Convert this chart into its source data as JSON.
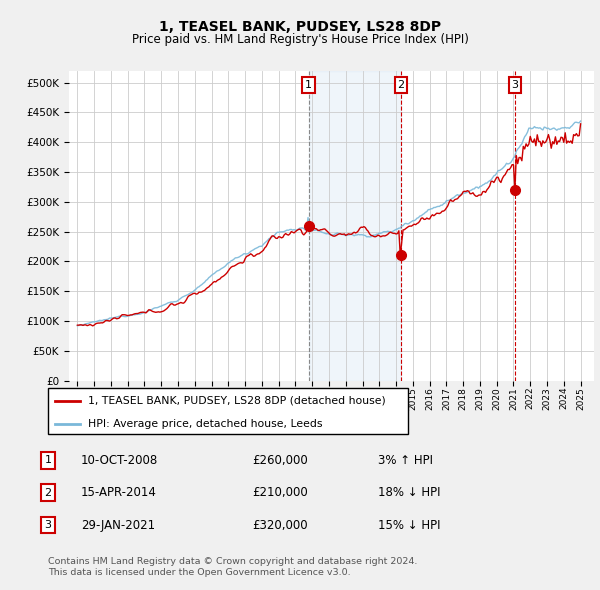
{
  "title": "1, TEASEL BANK, PUDSEY, LS28 8DP",
  "subtitle": "Price paid vs. HM Land Registry's House Price Index (HPI)",
  "legend_line1": "1, TEASEL BANK, PUDSEY, LS28 8DP (detached house)",
  "legend_line2": "HPI: Average price, detached house, Leeds",
  "footnote1": "Contains HM Land Registry data © Crown copyright and database right 2024.",
  "footnote2": "This data is licensed under the Open Government Licence v3.0.",
  "transactions": [
    {
      "num": 1,
      "date": "10-OCT-2008",
      "price": 260000,
      "hpi_rel": "3% ↑ HPI",
      "x": 2008.78
    },
    {
      "num": 2,
      "date": "15-APR-2014",
      "price": 210000,
      "hpi_rel": "18% ↓ HPI",
      "x": 2014.29
    },
    {
      "num": 3,
      "date": "29-JAN-2021",
      "price": 320000,
      "hpi_rel": "15% ↓ HPI",
      "x": 2021.08
    }
  ],
  "hpi_color": "#7ab8d9",
  "price_color": "#cc0000",
  "shaded_region": [
    2008.78,
    2014.29
  ],
  "plot_bg": "#ffffff",
  "grid_color": "#cccccc",
  "ylim": [
    0,
    520000
  ],
  "xlim": [
    1994.5,
    2025.8
  ]
}
